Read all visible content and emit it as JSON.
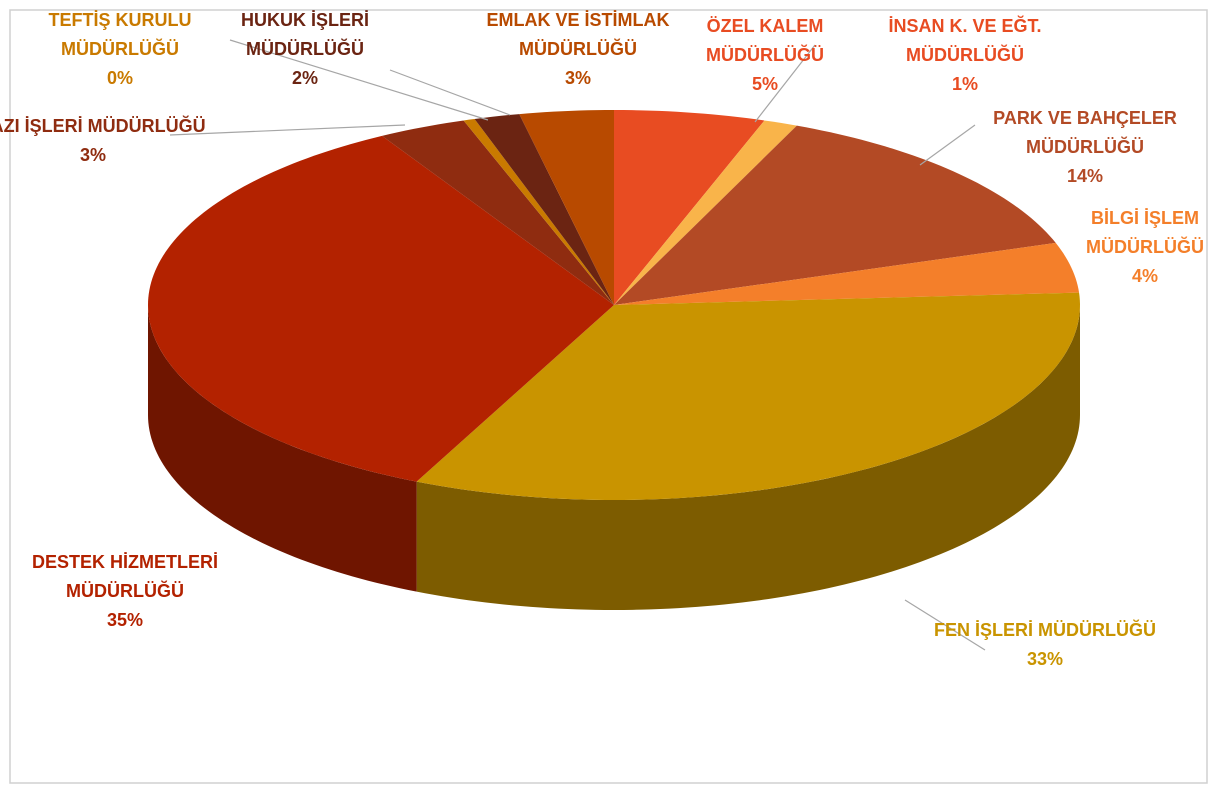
{
  "chart_data": {
    "type": "pie",
    "categories": [
      "ÖZEL KALEM MÜDÜRLÜĞÜ",
      "İNSAN K. VE EĞT. MÜDÜRLÜĞÜ",
      "PARK VE BAHÇELER MÜDÜRLÜĞÜ",
      "BİLGİ İŞLEM MÜDÜRLÜĞÜ",
      "FEN İŞLERİ MÜDÜRLÜĞÜ",
      "DESTEK HİZMETLERİ MÜDÜRLÜĞÜ",
      "YAZI İŞLERİ MÜDÜRLÜĞÜ",
      "TEFTİŞ KURULU MÜDÜRLÜĞÜ",
      "HUKUK İŞLERİ MÜDÜRLÜĞÜ",
      "EMLAK VE İSTİMLAK MÜDÜRLÜĞÜ"
    ],
    "values": [
      5.3,
      1.2,
      13.6,
      4.2,
      33.4,
      35.2,
      3.1,
      0.4,
      1.6,
      3.3
    ],
    "value_labels": [
      "5%",
      "1%",
      "14%",
      "4%",
      "33%",
      "35%",
      "3%",
      "0%",
      "2%",
      "3%"
    ],
    "colors": [
      "#e84c22",
      "#f9b44a",
      "#b34a25",
      "#f47f2a",
      "#c99400",
      "#b32200",
      "#8f2c10",
      "#c97a00",
      "#6b2412",
      "#b84a00"
    ]
  }
}
